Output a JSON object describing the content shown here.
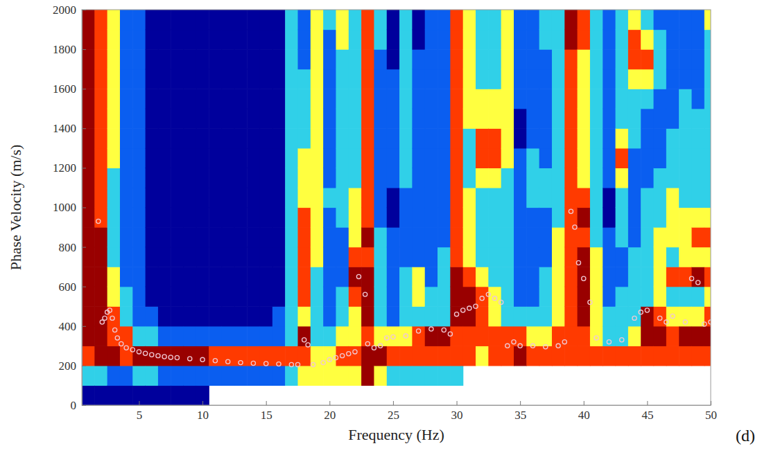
{
  "chart_data": {
    "type": "heatmap",
    "x_label": "Frequency (Hz)",
    "y_label": "Phase Velocity (m/s)",
    "annotation": "(d)",
    "xlim": [
      0.5,
      50
    ],
    "ylim": [
      0,
      2000
    ],
    "xticks": [
      5,
      10,
      15,
      20,
      25,
      30,
      35,
      40,
      45,
      50
    ],
    "yticks": [
      0,
      200,
      400,
      600,
      800,
      1000,
      1200,
      1400,
      1600,
      1800,
      2000
    ],
    "x": [
      1,
      2,
      3,
      4,
      5,
      6,
      7,
      8,
      9,
      10,
      11,
      12,
      13,
      14,
      15,
      16,
      17,
      18,
      19,
      20,
      21,
      22,
      23,
      24,
      25,
      26,
      27,
      28,
      29,
      30,
      31,
      32,
      33,
      34,
      35,
      36,
      37,
      38,
      39,
      40,
      41,
      42,
      43,
      44,
      45,
      46,
      47,
      48,
      49,
      50
    ],
    "y": [
      50,
      150,
      250,
      350,
      450,
      550,
      650,
      750,
      850,
      950,
      1050,
      1150,
      1250,
      1350,
      1450,
      1550,
      1650,
      1750,
      1850,
      1950
    ],
    "zlim": [
      0,
      5
    ],
    "colors": [
      "#00009c",
      "#0a5ef0",
      "#30d0e8",
      "#ffff40",
      "#ff3a00",
      "#990000"
    ],
    "cells": [
      [
        0,
        2,
        4,
        5,
        5,
        5,
        5,
        5,
        5,
        5,
        5,
        5,
        5,
        5,
        5,
        5,
        5,
        5,
        5,
        5
      ],
      [
        0,
        2,
        5,
        5,
        5,
        5,
        5,
        5,
        5,
        4,
        4,
        4,
        4,
        4,
        4,
        4,
        4,
        4,
        4,
        4
      ],
      [
        0,
        1,
        5,
        4,
        4,
        3,
        3,
        2,
        2,
        2,
        2,
        2,
        3,
        3,
        3,
        3,
        3,
        3,
        3,
        3
      ],
      [
        0,
        1,
        4,
        4,
        2,
        2,
        1,
        1,
        1,
        1,
        1,
        1,
        1,
        1,
        1,
        1,
        1,
        1,
        1,
        1
      ],
      [
        0,
        2,
        5,
        2,
        1,
        1,
        1,
        1,
        1,
        1,
        1,
        1,
        1,
        1,
        1,
        1,
        1,
        1,
        1,
        1
      ],
      [
        0,
        2,
        5,
        2,
        1,
        0,
        0,
        0,
        0,
        0,
        0,
        0,
        0,
        0,
        0,
        0,
        0,
        0,
        0,
        0
      ],
      [
        0,
        1,
        5,
        1,
        0,
        0,
        0,
        0,
        0,
        0,
        0,
        0,
        0,
        0,
        0,
        0,
        0,
        0,
        0,
        0
      ],
      [
        0,
        1,
        5,
        1,
        0,
        0,
        0,
        0,
        0,
        0,
        0,
        0,
        0,
        0,
        0,
        0,
        0,
        0,
        0,
        0
      ],
      [
        0,
        1,
        5,
        1,
        0,
        0,
        0,
        0,
        0,
        0,
        0,
        0,
        0,
        0,
        0,
        0,
        0,
        0,
        0,
        0
      ],
      [
        0,
        1,
        5,
        1,
        0,
        0,
        0,
        0,
        0,
        0,
        0,
        0,
        0,
        0,
        0,
        0,
        0,
        0,
        0,
        0
      ],
      [
        null,
        1,
        4,
        1,
        0,
        0,
        0,
        0,
        0,
        0,
        0,
        0,
        0,
        0,
        0,
        0,
        0,
        0,
        0,
        0
      ],
      [
        null,
        1,
        4,
        1,
        0,
        0,
        0,
        0,
        0,
        0,
        0,
        0,
        0,
        0,
        0,
        0,
        0,
        0,
        0,
        0
      ],
      [
        null,
        1,
        4,
        1,
        0,
        0,
        0,
        0,
        0,
        0,
        0,
        0,
        0,
        0,
        0,
        0,
        0,
        0,
        0,
        0
      ],
      [
        null,
        1,
        4,
        1,
        0,
        0,
        0,
        0,
        0,
        0,
        0,
        0,
        0,
        0,
        0,
        0,
        0,
        0,
        0,
        0
      ],
      [
        null,
        1,
        4,
        1,
        0,
        0,
        0,
        0,
        0,
        0,
        0,
        0,
        0,
        0,
        0,
        0,
        0,
        0,
        0,
        0
      ],
      [
        null,
        1,
        4,
        1,
        1,
        0,
        0,
        0,
        0,
        0,
        0,
        0,
        0,
        0,
        0,
        0,
        0,
        0,
        0,
        0
      ],
      [
        null,
        2,
        4,
        2,
        2,
        2,
        2,
        2,
        2,
        2,
        2,
        2,
        2,
        2,
        2,
        2,
        2,
        2,
        2,
        2
      ],
      [
        null,
        3,
        4,
        5,
        3,
        4,
        4,
        4,
        4,
        4,
        3,
        3,
        3,
        2,
        2,
        2,
        2,
        1,
        1,
        1
      ],
      [
        null,
        3,
        3,
        2,
        2,
        2,
        2,
        3,
        3,
        3,
        3,
        3,
        3,
        3,
        3,
        3,
        3,
        3,
        3,
        3
      ],
      [
        null,
        3,
        3,
        2,
        1,
        1,
        1,
        1,
        1,
        1,
        2,
        1,
        1,
        1,
        1,
        1,
        1,
        1,
        1,
        2
      ],
      [
        null,
        3,
        4,
        3,
        2,
        2,
        1,
        1,
        1,
        2,
        2,
        2,
        2,
        2,
        2,
        2,
        2,
        2,
        3,
        3
      ],
      [
        null,
        3,
        4,
        3,
        3,
        4,
        5,
        4,
        3,
        3,
        3,
        2,
        2,
        2,
        2,
        2,
        2,
        2,
        2,
        2
      ],
      [
        null,
        5,
        5,
        4,
        5,
        5,
        5,
        4,
        5,
        4,
        4,
        4,
        4,
        4,
        4,
        4,
        4,
        4,
        4,
        4
      ],
      [
        null,
        3,
        5,
        3,
        2,
        2,
        2,
        2,
        2,
        1,
        1,
        1,
        1,
        1,
        1,
        1,
        1,
        1,
        2,
        2
      ],
      [
        null,
        2,
        4,
        3,
        1,
        1,
        1,
        1,
        1,
        0,
        0,
        1,
        1,
        1,
        1,
        1,
        1,
        0,
        0,
        0
      ],
      [
        null,
        2,
        4,
        3,
        2,
        2,
        2,
        1,
        1,
        1,
        1,
        2,
        2,
        2,
        2,
        2,
        2,
        2,
        2,
        2
      ],
      [
        null,
        2,
        4,
        4,
        2,
        3,
        3,
        1,
        1,
        1,
        1,
        1,
        1,
        1,
        1,
        1,
        1,
        1,
        0,
        0
      ],
      [
        null,
        2,
        4,
        5,
        2,
        2,
        1,
        1,
        1,
        1,
        1,
        1,
        1,
        1,
        1,
        1,
        1,
        1,
        1,
        1
      ],
      [
        null,
        2,
        4,
        5,
        2,
        2,
        2,
        2,
        1,
        1,
        1,
        1,
        1,
        1,
        1,
        1,
        1,
        1,
        1,
        1
      ],
      [
        null,
        2,
        4,
        4,
        5,
        5,
        5,
        4,
        4,
        4,
        4,
        4,
        4,
        4,
        4,
        4,
        4,
        4,
        4,
        4
      ],
      [
        null,
        null,
        4,
        4,
        5,
        5,
        4,
        3,
        3,
        3,
        3,
        2,
        2,
        2,
        3,
        3,
        3,
        3,
        3,
        3
      ],
      [
        null,
        null,
        3,
        4,
        4,
        4,
        3,
        2,
        2,
        2,
        2,
        3,
        4,
        4,
        3,
        3,
        2,
        2,
        2,
        2
      ],
      [
        null,
        null,
        4,
        4,
        3,
        3,
        2,
        2,
        2,
        2,
        2,
        3,
        4,
        4,
        3,
        3,
        2,
        2,
        2,
        2
      ],
      [
        null,
        null,
        4,
        4,
        2,
        2,
        2,
        2,
        2,
        2,
        2,
        2,
        3,
        3,
        3,
        3,
        3,
        3,
        3,
        3
      ],
      [
        null,
        null,
        5,
        4,
        2,
        1,
        1,
        1,
        1,
        1,
        1,
        1,
        1,
        0,
        0,
        1,
        1,
        1,
        1,
        1
      ],
      [
        null,
        null,
        4,
        3,
        2,
        1,
        1,
        1,
        1,
        1,
        2,
        2,
        2,
        1,
        1,
        1,
        1,
        1,
        1,
        1
      ],
      [
        null,
        null,
        4,
        3,
        2,
        2,
        2,
        1,
        1,
        1,
        2,
        2,
        1,
        1,
        1,
        1,
        1,
        1,
        2,
        2
      ],
      [
        null,
        null,
        4,
        4,
        3,
        3,
        3,
        3,
        3,
        2,
        2,
        2,
        2,
        2,
        2,
        2,
        2,
        2,
        2,
        2
      ],
      [
        null,
        null,
        4,
        4,
        4,
        4,
        4,
        4,
        4,
        4,
        4,
        4,
        4,
        4,
        4,
        4,
        4,
        4,
        5,
        5
      ],
      [
        null,
        null,
        4,
        4,
        5,
        5,
        5,
        5,
        4,
        5,
        4,
        3,
        3,
        3,
        3,
        3,
        3,
        3,
        4,
        4
      ],
      [
        null,
        null,
        4,
        3,
        3,
        3,
        3,
        3,
        2,
        2,
        2,
        2,
        2,
        2,
        2,
        2,
        2,
        2,
        2,
        2
      ],
      [
        null,
        null,
        4,
        2,
        2,
        1,
        1,
        1,
        1,
        0,
        0,
        1,
        1,
        1,
        1,
        1,
        1,
        1,
        1,
        1
      ],
      [
        null,
        null,
        4,
        2,
        2,
        2,
        1,
        1,
        2,
        2,
        2,
        3,
        4,
        3,
        2,
        2,
        2,
        2,
        2,
        2
      ],
      [
        null,
        null,
        4,
        3,
        2,
        2,
        2,
        2,
        1,
        1,
        1,
        1,
        1,
        2,
        2,
        2,
        3,
        4,
        4,
        3
      ],
      [
        null,
        null,
        4,
        5,
        5,
        2,
        2,
        2,
        2,
        2,
        2,
        1,
        1,
        1,
        1,
        2,
        3,
        4,
        3,
        2
      ],
      [
        null,
        null,
        4,
        5,
        4,
        3,
        3,
        3,
        3,
        2,
        2,
        2,
        1,
        1,
        1,
        1,
        2,
        2,
        2,
        1
      ],
      [
        null,
        null,
        4,
        4,
        3,
        2,
        4,
        2,
        3,
        3,
        3,
        2,
        2,
        2,
        1,
        1,
        1,
        1,
        1,
        1
      ],
      [
        null,
        null,
        4,
        5,
        3,
        2,
        4,
        3,
        3,
        3,
        2,
        2,
        2,
        2,
        2,
        2,
        1,
        1,
        1,
        1
      ],
      [
        null,
        null,
        4,
        5,
        3,
        2,
        5,
        3,
        4,
        3,
        2,
        2,
        2,
        2,
        2,
        1,
        1,
        1,
        1,
        1
      ],
      [
        null,
        null,
        4,
        5,
        4,
        3,
        4,
        3,
        4,
        3,
        2,
        2,
        2,
        2,
        2,
        2,
        2,
        2,
        2,
        3
      ]
    ],
    "points": {
      "marker": "circle",
      "color": "#f0c8d4",
      "x": [
        1.8,
        2.1,
        2.3,
        2.5,
        2.7,
        2.9,
        3.1,
        3.3,
        3.6,
        4,
        4.5,
        5,
        5.5,
        6,
        6.5,
        7,
        7.5,
        8,
        9,
        10,
        11,
        12,
        13,
        14,
        15,
        16,
        17,
        17.5,
        18,
        18.3,
        18.7,
        19.5,
        20,
        20.5,
        21,
        21.5,
        22,
        22.3,
        22.8,
        23,
        23.5,
        24,
        24.5,
        25,
        26,
        27,
        28,
        29,
        29.5,
        30,
        30.5,
        31,
        31.5,
        32,
        32.5,
        33,
        33.5,
        34,
        34.5,
        35,
        36,
        37,
        38,
        38.5,
        39,
        39.3,
        39.6,
        40,
        40.5,
        41,
        42,
        43,
        44,
        44.5,
        45,
        46,
        46.5,
        47,
        48,
        48.5,
        49,
        49.5,
        50
      ],
      "y": [
        930,
        420,
        440,
        470,
        480,
        440,
        380,
        340,
        310,
        290,
        280,
        270,
        262,
        255,
        250,
        245,
        242,
        240,
        235,
        230,
        225,
        220,
        215,
        212,
        210,
        208,
        205,
        205,
        330,
        305,
        205,
        215,
        230,
        240,
        250,
        260,
        270,
        650,
        560,
        310,
        290,
        300,
        340,
        345,
        350,
        375,
        385,
        380,
        360,
        460,
        480,
        490,
        500,
        540,
        560,
        540,
        520,
        300,
        320,
        300,
        300,
        295,
        300,
        320,
        980,
        900,
        720,
        640,
        520,
        340,
        320,
        330,
        440,
        470,
        480,
        440,
        420,
        450,
        420,
        640,
        620,
        410,
        420
      ]
    }
  }
}
